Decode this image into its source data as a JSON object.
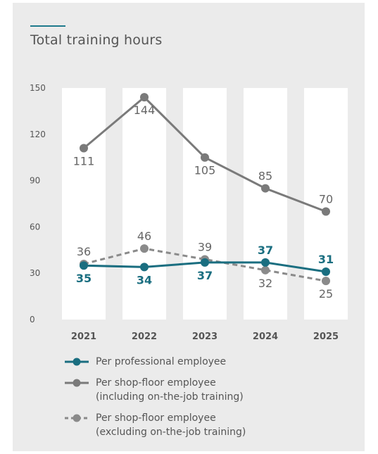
{
  "chart_data": {
    "type": "line",
    "title": "Total training hours",
    "categories": [
      "2021",
      "2022",
      "2023",
      "2024",
      "2025"
    ],
    "ylim": [
      0,
      150
    ],
    "yticks": [
      0,
      30,
      60,
      90,
      120,
      150
    ],
    "grid": false,
    "legend_position": "bottom",
    "series": [
      {
        "name": "Per professional employee",
        "values": [
          35,
          34,
          37,
          37,
          31
        ],
        "labels": [
          "35",
          "34",
          "37",
          "37",
          "31"
        ],
        "color": "#1a6e80",
        "style": "solid",
        "label_pos": [
          "below",
          "below",
          "below",
          "above",
          "above"
        ]
      },
      {
        "name": "Per shop-floor employee (including on-the-job training)",
        "values": [
          111,
          144,
          105,
          85,
          70
        ],
        "labels": [
          "111",
          "144",
          "105",
          "85",
          "70"
        ],
        "color": "#7a7a7a",
        "style": "solid",
        "label_pos": [
          "below",
          "below",
          "below",
          "above",
          "above"
        ]
      },
      {
        "name": "Per shop-floor employee (excluding on-the-job training)",
        "values": [
          36,
          46,
          39,
          32,
          25
        ],
        "labels": [
          "36",
          "46",
          "39",
          "32",
          "25"
        ],
        "color": "#8a8a8a",
        "style": "dashed",
        "label_pos": [
          "above",
          "above",
          "above",
          "below",
          "below"
        ]
      }
    ]
  },
  "legend": {
    "items": [
      {
        "line1": "Per professional employee",
        "line2": ""
      },
      {
        "line1": "Per shop-floor employee",
        "line2": "(including on-the-job training)"
      },
      {
        "line1": "Per shop-floor employee",
        "line2": "(excluding on-the-job training)"
      }
    ]
  },
  "colors": {
    "background": "#ebebeb",
    "column_band": "#ffffff",
    "accent": "#1f7a8c",
    "professional": "#1a6e80",
    "shopfloor": "#7a7a7a"
  }
}
